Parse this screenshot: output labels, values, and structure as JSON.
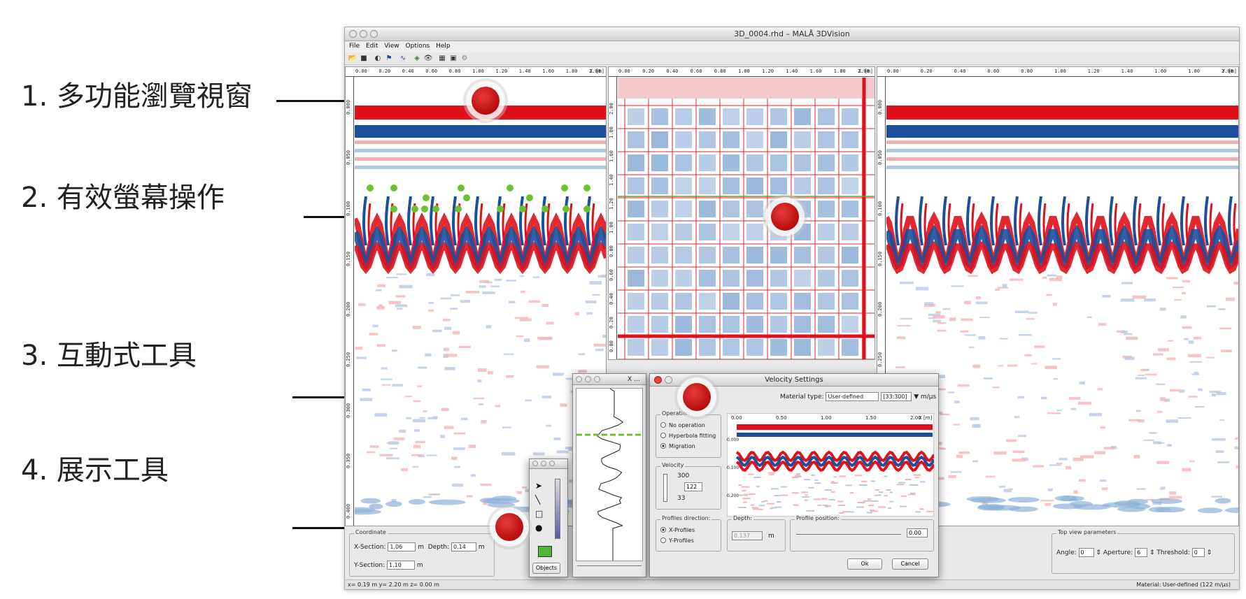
{
  "callouts": [
    {
      "label": "1. 多功能瀏覽視窗"
    },
    {
      "label": "2. 有效螢幕操作"
    },
    {
      "label": "3. 互動式工具"
    },
    {
      "label": "4. 展示工具"
    }
  ],
  "window": {
    "title": "3D_0004.rhd – MALÅ 3DVision",
    "menu": [
      "File",
      "Edit",
      "View",
      "Options",
      "Help"
    ]
  },
  "panes": {
    "left": {
      "x_ticks": [
        "0.00",
        "0.20",
        "0.40",
        "0.60",
        "0.80",
        "1.00",
        "1.20",
        "1.40",
        "1.60",
        "1.80",
        "2.00"
      ],
      "x_unit": "X [m]",
      "y_ticks": [
        "0.000",
        "0.050",
        "0.100",
        "0.150",
        "0.200",
        "0.250",
        "0.300",
        "0.350",
        "0.400"
      ]
    },
    "middle": {
      "x_ticks": [
        "0.00",
        "0.20",
        "0.40",
        "0.60",
        "0.80",
        "1.00",
        "1.20",
        "1.40",
        "1.60",
        "1.80",
        "2.00"
      ],
      "x_unit": "X [m]",
      "y_ticks": [
        "2.00",
        "1.80",
        "1.60",
        "1.40",
        "1.20",
        "1.00",
        "0.80",
        "0.60",
        "0.40",
        "0.20",
        "0.00"
      ],
      "y_unit": "Y [m]"
    },
    "right": {
      "x_ticks": [
        "0.00",
        "0.20",
        "0.40",
        "0.60",
        "0.80",
        "1.00",
        "1.20",
        "1.40",
        "1.60",
        "1.80",
        "2.00"
      ],
      "x_unit": "Y [m]",
      "y_ticks": [
        "0.000",
        "0.050",
        "0.100",
        "0.150",
        "0.200",
        "0.250",
        "0.300",
        "0.350",
        "0.400"
      ]
    }
  },
  "coordinate": {
    "group_label": "Coordinate",
    "xsection_label": "X-Section:",
    "xsection_value": "1.06",
    "xsection_unit": "m",
    "depth_label": "Depth:",
    "depth_value": "0.14",
    "depth_unit": "m",
    "ysection_label": "Y-Section:",
    "ysection_value": "1.10",
    "ysection_unit": "m"
  },
  "top_view": {
    "group_label": "Top view parameters",
    "angle_label": "Angle:",
    "angle_value": "0",
    "aperture_label": "Aperture:",
    "aperture_value": "6",
    "threshold_label": "Threshold:",
    "threshold_value": "0"
  },
  "status": {
    "left": "x= 0.19 m  y= 2.20 m  z= 0.00 m",
    "right": "Material: User-defined (122 m/µs)"
  },
  "trace_window": {
    "title": "X …"
  },
  "objects_window": {
    "button": "Objects"
  },
  "velocity": {
    "title": "Velocity Settings",
    "material_label": "Material type:",
    "material_value": "User-defined",
    "range_value": "[33:300]",
    "unit": "m/µs",
    "operation_label": "Operation",
    "op_none": "No operation",
    "op_hyperbola": "Hyperbola fitting",
    "op_migration": "Migration",
    "velocity_label": "Velocity",
    "vel_max": "300",
    "vel_value": "122",
    "vel_min": "33",
    "profiles_label": "Profiles direction:",
    "x_profiles": "X-Profiles",
    "y_profiles": "Y-Profiles",
    "depth_label": "Depth:",
    "depth_value": "0.137",
    "depth_unit": "m",
    "position_label": "Profile position:",
    "position_value": "0.00",
    "x_ticks": [
      "0.00",
      "0.50",
      "1.00",
      "1.50",
      "2.00"
    ],
    "x_unit": "X [m]",
    "y_ticks": [
      "0.000",
      "0.100",
      "0.200"
    ],
    "ok": "Ok",
    "cancel": "Cancel"
  },
  "colors": {
    "red": "#e0111b",
    "blue": "#1c4f9c",
    "pale_blue": "#8fb0d8",
    "green": "#6cc12e"
  }
}
